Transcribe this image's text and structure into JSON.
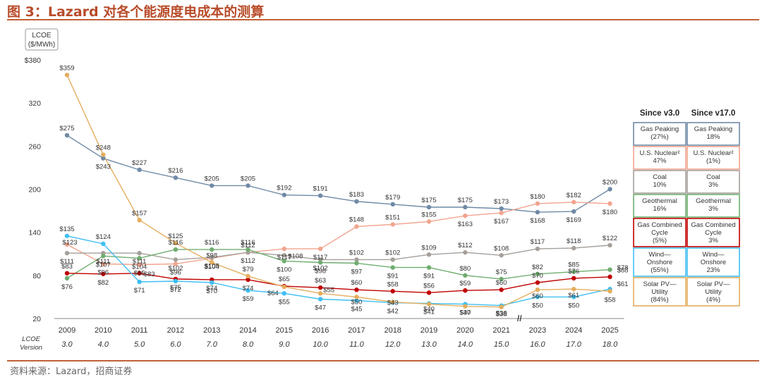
{
  "figure_title": "图 3：Lazard 对各个能源度电成本的测算",
  "source_note": "资料来源：Lazard，招商证券",
  "colors": {
    "accent": "#b84c2a",
    "gas_peaking": "#6f8aa6",
    "nuclear": "#f2a48e",
    "coal": "#a59f9a",
    "geothermal": "#70ad6f",
    "gas_combined": "#c00000",
    "wind": "#3fbff2",
    "solar": "#e3ae5e"
  },
  "chart_data": {
    "type": "line",
    "title": "",
    "ylabel": "LCOE ($/MWh)",
    "ylabel_lines": [
      "LCOE",
      "($/MWh)"
    ],
    "ylim": [
      20,
      380
    ],
    "yticks": [
      20,
      80,
      140,
      200,
      260,
      320,
      380
    ],
    "ytick_labels": [
      "20",
      "80",
      "140",
      "200",
      "260",
      "320",
      "$380"
    ],
    "categories": [
      "2009",
      "2010",
      "2011",
      "2012",
      "2013",
      "2014",
      "2015",
      "2016",
      "2017",
      "2018",
      "2019",
      "2020",
      "2021",
      "2023",
      "2024",
      "2025"
    ],
    "axis_break_label": "//",
    "version_row_label": [
      "LCOE",
      "Version"
    ],
    "versions": [
      "3.0",
      "4.0",
      "5.0",
      "6.0",
      "7.0",
      "8.0",
      "9.0",
      "10.0",
      "11.0",
      "12.0",
      "13.0",
      "14.0",
      "15.0",
      "16.0",
      "17.0",
      "18.0"
    ],
    "legend_headers": [
      "Since v3.0",
      "Since v17.0"
    ],
    "series": [
      {
        "key": "gas_peaking",
        "name": "Gas Peaking",
        "values": [
          275,
          243,
          227,
          216,
          205,
          205,
          192,
          191,
          183,
          179,
          175,
          175,
          173,
          168,
          169,
          200
        ],
        "labels": [
          "$275",
          "$243",
          "$227",
          "$216",
          "$205",
          "$205",
          "$192",
          "$191",
          "$183",
          "$179",
          "$175",
          "$175",
          "$173",
          "$168",
          "$169",
          "$200"
        ],
        "legend": {
          "name_lines": [
            "Gas Peaking"
          ],
          "since_v3": "(27%)",
          "since_v17": "18%"
        }
      },
      {
        "key": "nuclear",
        "name": "U.S. Nuclear",
        "values": [
          123,
          96,
          95,
          96,
          104,
          112,
          117,
          117,
          148,
          151,
          155,
          163,
          167,
          180,
          182,
          180
        ],
        "labels": [
          "$123",
          "$96",
          "$95",
          "$96",
          "$104",
          "$112",
          "$117",
          "$117",
          "$148",
          "$151",
          "$155",
          "$163",
          "$167",
          "$180",
          "$182",
          "$180"
        ],
        "legend": {
          "name_lines": [
            "U.S. Nuclear²"
          ],
          "since_v3": "47%",
          "since_v17": "(1%)"
        }
      },
      {
        "key": "coal",
        "name": "Coal",
        "values": [
          111,
          111,
          111,
          102,
          105,
          112,
          108,
          102,
          102,
          102,
          109,
          112,
          108,
          117,
          118,
          122
        ],
        "labels": [
          "$111",
          "$111",
          "$111",
          "$102",
          "$105",
          "$112",
          "$108",
          "$102",
          "$102",
          "$102",
          "$109",
          "$112",
          "$108",
          "$117",
          "$118",
          "$122"
        ],
        "legend": {
          "name_lines": [
            "Coal"
          ],
          "since_v3": "10%",
          "since_v17": "3%"
        }
      },
      {
        "key": "geothermal",
        "name": "Geothermal",
        "values": [
          76,
          107,
          104,
          116,
          116,
          116,
          100,
          98,
          97,
          91,
          91,
          80,
          75,
          82,
          85,
          88
        ],
        "labels": [
          "$76",
          "$107",
          "$104",
          "$116",
          "$116",
          "$116",
          "$100",
          "$98",
          "$97",
          "$91",
          "$91",
          "$80",
          "$75",
          "$82",
          "$85",
          "$88"
        ],
        "legend": {
          "name_lines": [
            "Geothermal"
          ],
          "since_v3": "16%",
          "since_v17": "3%"
        }
      },
      {
        "key": "gas_combined",
        "name": "Gas Combined Cycle",
        "values": [
          83,
          82,
          83,
          75,
          74,
          74,
          65,
          63,
          60,
          58,
          56,
          59,
          60,
          70,
          76,
          78
        ],
        "labels": [
          "$83",
          "$82",
          "$83",
          "$75",
          "$74",
          "$74",
          "$65",
          "$63",
          "$60",
          "$58",
          "$56",
          "$59",
          "$60",
          "$70",
          "$76",
          "$78"
        ],
        "legend": {
          "name_lines": [
            "Gas Combined",
            "Cycle"
          ],
          "since_v3": "(5%)",
          "since_v17": "3%"
        }
      },
      {
        "key": "wind",
        "name": "Wind—Onshore",
        "values": [
          135,
          124,
          71,
          72,
          70,
          59,
          55,
          47,
          45,
          42,
          41,
          40,
          38,
          50,
          50,
          61
        ],
        "labels": [
          "$135",
          "$124",
          "$71",
          "$72",
          "$70",
          "$59",
          "$55",
          "$47",
          "$45",
          "$42",
          "$41",
          "$40",
          "$38",
          "$50",
          "$50",
          "$61"
        ],
        "legend": {
          "name_lines": [
            "Wind—",
            "Onshore"
          ],
          "since_v3": "(55%)",
          "since_v17": "23%"
        }
      },
      {
        "key": "solar",
        "name": "Solar PV—Utility",
        "values": [
          359,
          248,
          157,
          125,
          98,
          79,
          64,
          55,
          50,
          43,
          40,
          37,
          36,
          60,
          61,
          58
        ],
        "labels": [
          "$359",
          "$248",
          "$157",
          "$125",
          "$98",
          "$79",
          "$64",
          "$55",
          "$50",
          "$43",
          "$40",
          "$37",
          "$36",
          "$60",
          "$61",
          "$58"
        ],
        "legend": {
          "name_lines": [
            "Solar PV—",
            "Utility"
          ],
          "since_v3": "(84%)",
          "since_v17": "(4%)"
        }
      }
    ]
  }
}
